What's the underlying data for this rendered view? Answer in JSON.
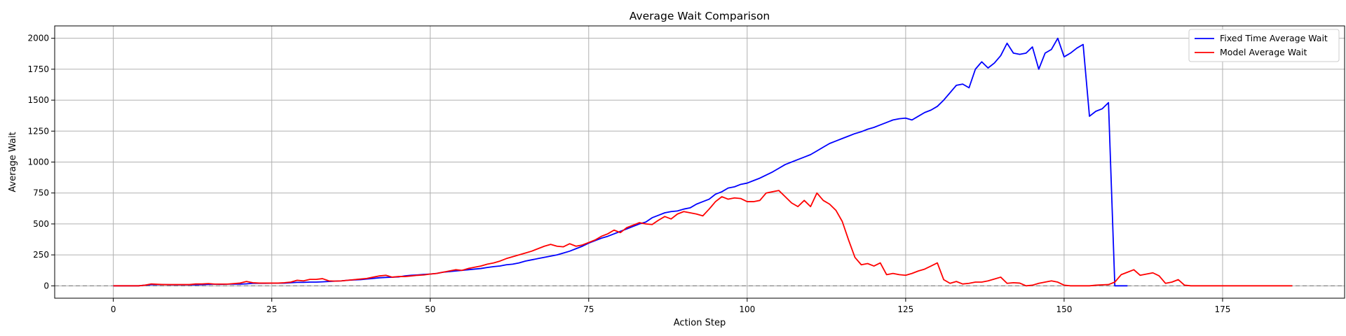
{
  "chart_data": {
    "type": "line",
    "title": "Average Wait Comparison",
    "xlabel": "Action Step",
    "ylabel": "Average Wait",
    "xlim": [
      -9.25,
      194.25
    ],
    "ylim": [
      -100,
      2100
    ],
    "xticks": [
      0,
      25,
      50,
      75,
      100,
      125,
      150,
      175
    ],
    "yticks": [
      0,
      250,
      500,
      750,
      1000,
      1250,
      1500,
      1750,
      2000
    ],
    "grid": true,
    "legend_position": "top-right",
    "reference_line": {
      "y": 0,
      "style": "dashed",
      "color": "#808080"
    },
    "series": [
      {
        "name": "Fixed Time Average Wait",
        "color": "#0000ff",
        "start_x": 0,
        "values": [
          0,
          0,
          0,
          0,
          0,
          5,
          10,
          10,
          10,
          8,
          8,
          8,
          8,
          8,
          10,
          12,
          14,
          12,
          14,
          14,
          14,
          16,
          20,
          20,
          20,
          22,
          22,
          22,
          25,
          28,
          28,
          30,
          30,
          32,
          35,
          38,
          40,
          45,
          48,
          50,
          55,
          60,
          65,
          68,
          70,
          72,
          80,
          85,
          88,
          92,
          95,
          100,
          110,
          115,
          120,
          125,
          130,
          135,
          140,
          148,
          155,
          160,
          170,
          175,
          185,
          200,
          210,
          220,
          230,
          240,
          250,
          265,
          280,
          300,
          320,
          345,
          365,
          385,
          400,
          420,
          440,
          460,
          480,
          500,
          515,
          550,
          570,
          590,
          600,
          605,
          620,
          630,
          660,
          680,
          700,
          740,
          760,
          790,
          800,
          820,
          830,
          850,
          870,
          895,
          920,
          950,
          980,
          1000,
          1020,
          1040,
          1060,
          1090,
          1120,
          1150,
          1170,
          1190,
          1210,
          1230,
          1245,
          1265,
          1280,
          1300,
          1320,
          1340,
          1350,
          1355,
          1340,
          1370,
          1400,
          1420,
          1450,
          1500,
          1560,
          1620,
          1630,
          1600,
          1750,
          1810,
          1760,
          1800,
          1860,
          1960,
          1880,
          1870,
          1880,
          1930,
          1750,
          1880,
          1910,
          2000,
          1850,
          1880,
          1920,
          1950,
          1370,
          1410,
          1430,
          1480,
          0,
          0,
          0
        ]
      },
      {
        "name": "Model Average Wait",
        "color": "#ff0000",
        "start_x": 0,
        "values": [
          0,
          0,
          0,
          0,
          0,
          5,
          15,
          12,
          10,
          10,
          10,
          10,
          10,
          15,
          15,
          18,
          14,
          14,
          14,
          18,
          22,
          35,
          25,
          22,
          22,
          22,
          22,
          25,
          30,
          45,
          40,
          52,
          52,
          58,
          40,
          38,
          40,
          45,
          50,
          55,
          60,
          70,
          80,
          85,
          70,
          75,
          75,
          80,
          85,
          88,
          95,
          100,
          110,
          120,
          130,
          125,
          140,
          150,
          160,
          175,
          185,
          200,
          220,
          235,
          250,
          265,
          280,
          300,
          320,
          335,
          320,
          315,
          340,
          320,
          330,
          350,
          370,
          400,
          420,
          450,
          430,
          470,
          490,
          510,
          500,
          495,
          530,
          560,
          540,
          580,
          600,
          590,
          580,
          565,
          620,
          680,
          720,
          700,
          710,
          705,
          680,
          680,
          690,
          750,
          760,
          770,
          720,
          670,
          640,
          690,
          640,
          750,
          690,
          660,
          610,
          520,
          370,
          230,
          170,
          180,
          160,
          185,
          90,
          100,
          90,
          85,
          100,
          120,
          135,
          160,
          185,
          50,
          20,
          35,
          15,
          20,
          30,
          30,
          40,
          55,
          70,
          20,
          25,
          22,
          0,
          5,
          20,
          30,
          40,
          30,
          5,
          0,
          0,
          0,
          0,
          5,
          8,
          10,
          30,
          90,
          110,
          130,
          85,
          95,
          105,
          80,
          20,
          30,
          50,
          5,
          0,
          0,
          0,
          0,
          0,
          0,
          0,
          0,
          0,
          0,
          0,
          0,
          0,
          0,
          0,
          0,
          0
        ]
      }
    ]
  }
}
